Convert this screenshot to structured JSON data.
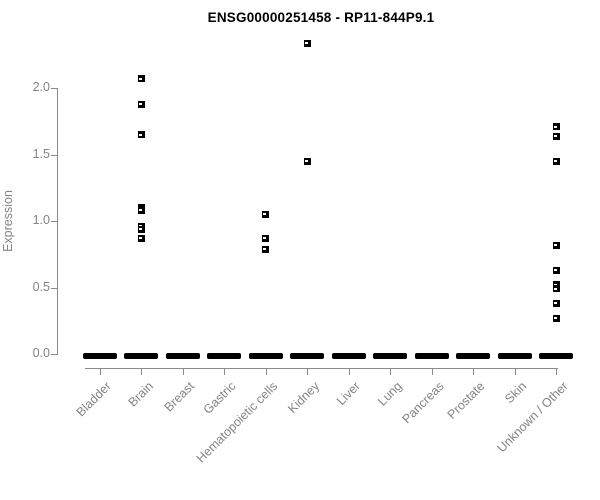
{
  "chart_data": {
    "type": "scatter",
    "title": "ENSG00000251458 - RP11-844P9.1",
    "ylabel": "Expression",
    "xlabel": "",
    "ylim": [
      0.0,
      2.4
    ],
    "yticks": [
      "0.0",
      "0.5",
      "1.0",
      "1.5",
      "2.0"
    ],
    "grid": "off",
    "legend": "none",
    "marker": "open-square",
    "marker_color": "#000000",
    "axis_color": "#8a8a8a",
    "label_color": "#848484",
    "categories": [
      "Bladder",
      "Brain",
      "Breast",
      "Gastric",
      "Hematopoietic cells",
      "Kidney",
      "Liver",
      "Lung",
      "Pancreas",
      "Prostate",
      "Skin",
      "Unknown / Other"
    ],
    "series": [
      {
        "category": "Bladder",
        "zero_cluster": true,
        "nonzero_values": []
      },
      {
        "category": "Brain",
        "zero_cluster": true,
        "nonzero_values": [
          2.07,
          1.88,
          1.65,
          1.1,
          1.08,
          0.96,
          0.94,
          0.87
        ]
      },
      {
        "category": "Breast",
        "zero_cluster": true,
        "nonzero_values": []
      },
      {
        "category": "Gastric",
        "zero_cluster": true,
        "nonzero_values": []
      },
      {
        "category": "Hematopoietic cells",
        "zero_cluster": true,
        "nonzero_values": [
          1.05,
          0.87,
          0.79
        ]
      },
      {
        "category": "Kidney",
        "zero_cluster": true,
        "nonzero_values": [
          2.34,
          1.45
        ]
      },
      {
        "category": "Liver",
        "zero_cluster": true,
        "nonzero_values": []
      },
      {
        "category": "Lung",
        "zero_cluster": true,
        "nonzero_values": []
      },
      {
        "category": "Pancreas",
        "zero_cluster": true,
        "nonzero_values": []
      },
      {
        "category": "Prostate",
        "zero_cluster": true,
        "nonzero_values": []
      },
      {
        "category": "Skin",
        "zero_cluster": true,
        "nonzero_values": []
      },
      {
        "category": "Unknown / Other",
        "zero_cluster": true,
        "nonzero_values": [
          1.71,
          1.64,
          1.45,
          0.82,
          0.63,
          0.52,
          0.49,
          0.38,
          0.27
        ]
      }
    ]
  }
}
